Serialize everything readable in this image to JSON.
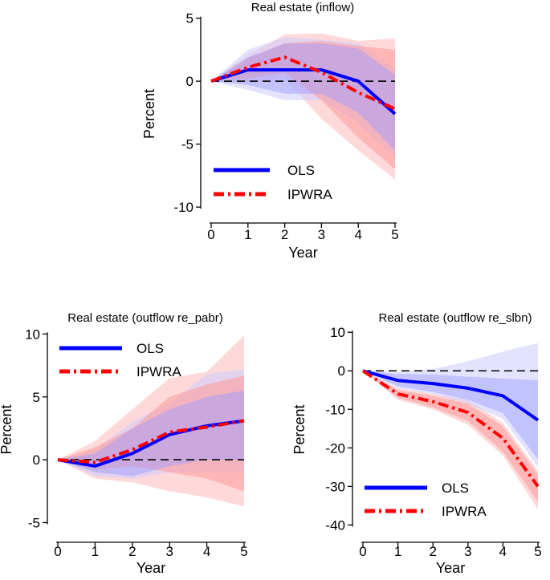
{
  "colors": {
    "ols": "#0000ff",
    "ipwra": "#ff0000",
    "ols_band_outer": "#ccccff",
    "ols_band_inner": "#9999ff",
    "ipwra_band_outer": "#ffcccc",
    "ipwra_band_inner": "#ff9999",
    "zero_line": "#000000"
  },
  "chart_data": [
    {
      "type": "line",
      "title": "Real estate (inflow)",
      "xlabel": "Year",
      "ylabel": "Percent",
      "x": [
        0,
        1,
        2,
        3,
        4,
        5
      ],
      "x_ticks": [
        "0",
        "1",
        "2",
        "3",
        "4",
        "5"
      ],
      "y_ticks": [
        5,
        0,
        -5,
        -10
      ],
      "y_tick_labels": [
        "5",
        "0",
        "-5",
        "-10"
      ],
      "ylim": [
        -10.5,
        5.3
      ],
      "legend": {
        "position": "bottom-left",
        "entries": [
          "OLS",
          "IPWRA"
        ]
      },
      "series": [
        {
          "name": "OLS",
          "style": "solid",
          "values": [
            0,
            0.9,
            0.9,
            0.9,
            0,
            -2.6
          ],
          "band90": {
            "lower": [
              0,
              -0.3,
              -1.0,
              -1.0,
              -2.5,
              -5.5
            ],
            "upper": [
              0,
              1.9,
              3.0,
              3.0,
              2.6,
              0.5
            ]
          },
          "band95": {
            "lower": [
              0,
              -0.7,
              -1.5,
              -1.5,
              -3.3,
              -6.1
            ],
            "upper": [
              0,
              2.5,
              3.5,
              3.3,
              3.0,
              1.0
            ]
          }
        },
        {
          "name": "IPWRA",
          "style": "dashdot",
          "values": [
            0,
            1.1,
            1.9,
            0.7,
            -0.9,
            -2.2
          ],
          "band90": {
            "lower": [
              0,
              0.2,
              0.7,
              -1.5,
              -4.5,
              -7.0
            ],
            "upper": [
              0,
              1.8,
              3.0,
              3.2,
              2.8,
              2.5
            ]
          },
          "band95": {
            "lower": [
              0,
              -0.1,
              0.2,
              -3.0,
              -5.5,
              -7.8
            ],
            "upper": [
              0,
              2.1,
              3.7,
              3.8,
              3.2,
              3.4
            ]
          }
        }
      ]
    },
    {
      "type": "line",
      "title": "Real estate (outflow re_pabr)",
      "xlabel": "Year",
      "ylabel": "Percent",
      "x": [
        0,
        1,
        2,
        3,
        4,
        5
      ],
      "x_ticks": [
        "0",
        "1",
        "2",
        "3",
        "4",
        "5"
      ],
      "y_ticks": [
        10,
        5,
        0,
        -5
      ],
      "y_tick_labels": [
        "10",
        "5",
        "0",
        "-5"
      ],
      "ylim": [
        -5.8,
        10.6
      ],
      "legend": {
        "position": "top-left",
        "entries": [
          "OLS",
          "IPWRA"
        ]
      },
      "series": [
        {
          "name": "OLS",
          "style": "solid",
          "values": [
            0,
            -0.5,
            0.5,
            2.0,
            2.7,
            3.1
          ],
          "band90": {
            "lower": [
              0,
              -1.0,
              -1.3,
              -0.5,
              0.0,
              0.0
            ],
            "upper": [
              0,
              0.5,
              2.5,
              4.0,
              5.0,
              5.5
            ]
          },
          "band95": {
            "lower": [
              0,
              -1.3,
              -1.5,
              -1.0,
              -1.0,
              -1.0
            ],
            "upper": [
              0,
              0.8,
              3.0,
              4.5,
              6.8,
              7.2
            ]
          }
        },
        {
          "name": "IPWRA",
          "style": "dashdot",
          "values": [
            0,
            -0.2,
            0.8,
            2.2,
            2.6,
            3.1
          ],
          "band90": {
            "lower": [
              0,
              -0.8,
              -0.5,
              -1.0,
              -1.5,
              -2.5
            ],
            "upper": [
              0,
              1.0,
              2.5,
              5.0,
              6.0,
              6.7
            ]
          },
          "band95": {
            "lower": [
              0,
              -1.5,
              -1.8,
              -2.5,
              -3.0,
              -3.7
            ],
            "upper": [
              0,
              1.5,
              4.0,
              6.5,
              7.0,
              9.9
            ]
          }
        }
      ]
    },
    {
      "type": "line",
      "title": "Real estate (outflow re_slbn)",
      "xlabel": "Year",
      "ylabel": "Percent",
      "x": [
        0,
        1,
        2,
        3,
        4,
        5
      ],
      "x_ticks": [
        "0",
        "1",
        "2",
        "3",
        "4",
        "5"
      ],
      "y_ticks": [
        10,
        0,
        -10,
        -20,
        -30,
        -40
      ],
      "y_tick_labels": [
        "10",
        "0",
        "-10",
        "-20",
        "-30",
        "-40"
      ],
      "ylim": [
        -42,
        11.5
      ],
      "legend": {
        "position": "bottom-left",
        "entries": [
          "OLS",
          "IPWRA"
        ]
      },
      "series": [
        {
          "name": "OLS",
          "style": "solid",
          "values": [
            0,
            -2.5,
            -3.3,
            -4.5,
            -6.5,
            -12.8
          ],
          "band90": {
            "lower": [
              0,
              -4.0,
              -5.5,
              -7.5,
              -11.0,
              -23.0
            ],
            "upper": [
              0,
              -0.8,
              -1.0,
              -1.5,
              -2.0,
              -2.5
            ]
          },
          "band95": {
            "lower": [
              0,
              -4.5,
              -6.0,
              -8.5,
              -12.5,
              -25.0
            ],
            "upper": [
              0,
              -0.3,
              0.5,
              2.5,
              5.0,
              7.2
            ]
          }
        },
        {
          "name": "IPWRA",
          "style": "dashdot",
          "values": [
            0,
            -6.0,
            -8.0,
            -10.8,
            -17.5,
            -30.0
          ],
          "band90": {
            "lower": [
              0,
              -7.0,
              -9.5,
              -13.0,
              -21.0,
              -34.0
            ],
            "upper": [
              0,
              -5.0,
              -6.5,
              -8.5,
              -14.5,
              -27.0
            ]
          },
          "band95": {
            "lower": [
              0,
              -7.5,
              -10.0,
              -14.0,
              -22.0,
              -36.0
            ],
            "upper": [
              0,
              -4.5,
              -6.0,
              -7.5,
              -13.5,
              -26.0
            ]
          }
        }
      ]
    }
  ]
}
